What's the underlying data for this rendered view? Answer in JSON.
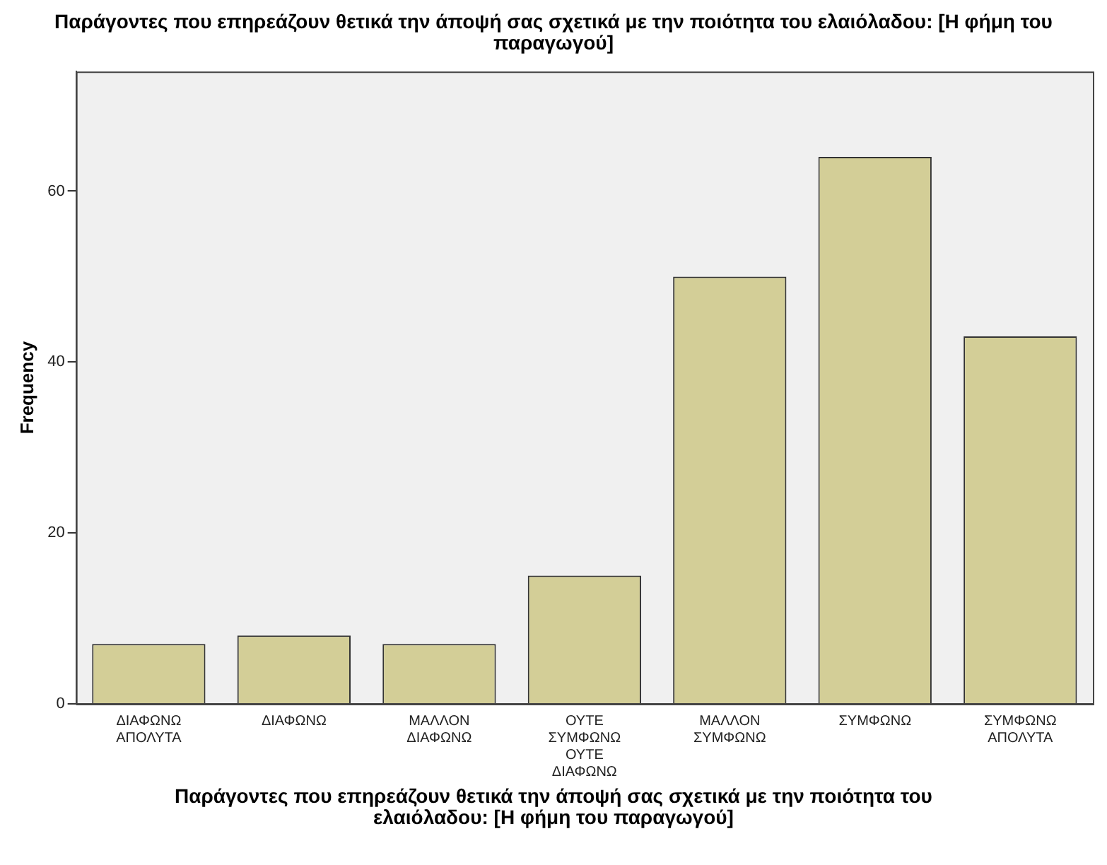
{
  "chart_data": {
    "type": "bar",
    "title": "Παράγοντες που επηρεάζουν θετικά την άποψή σας σχετικά με την ποιότητα του ελαιόλαδου: [Η φήμη του παραγωγού]",
    "xlabel": "Παράγοντες που επηρεάζουν θετικά την άποψή σας σχετικά με την ποιότητα του ελαιόλαδου: [Η φήμη του παραγωγού]",
    "ylabel": "Frequency",
    "categories": [
      "ΔΙΑΦΩΝΩ ΑΠΟΛΥΤΑ",
      "ΔΙΑΦΩΝΩ",
      "ΜΑΛΛΟΝ ΔΙΑΦΩΝΩ",
      "ΟΥΤΕ ΣΥΜΦΩΝΩ ΟΥΤΕ ΔΙΑΦΩΝΩ",
      "ΜΑΛΛΟΝ ΣΥΜΦΩΝΩ",
      "ΣΥΜΦΩΝΩ",
      "ΣΥΜΦΩΝΩ ΑΠΟΛΥΤΑ"
    ],
    "values": [
      7,
      8,
      7,
      15,
      50,
      64,
      43
    ],
    "color": "#d3ce97",
    "ylim": [
      0,
      74
    ],
    "yticks": [
      0,
      20,
      40,
      60
    ],
    "grid": false,
    "legend": false
  }
}
